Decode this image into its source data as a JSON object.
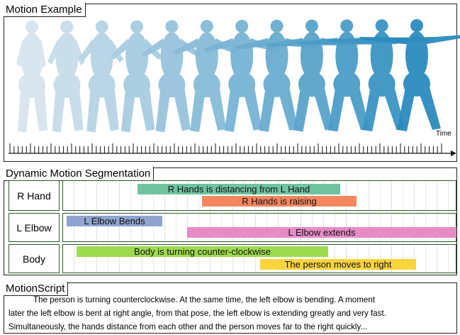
{
  "panels": [
    {
      "title": "Motion Example",
      "axis_label": "Time"
    },
    {
      "title": "Dynamic Motion Segmentation",
      "rows": [
        {
          "label": "R Hand",
          "segments": [
            "R Hands is distancing from L Hand",
            "R Hands is raising"
          ]
        },
        {
          "label": "L Elbow",
          "segments": [
            "L Elbow Bends",
            "L Elbow extends"
          ]
        },
        {
          "label": "Body",
          "segments": [
            "Body is turning counter-clockwise",
            "The person moves to right"
          ]
        }
      ]
    },
    {
      "title": "MotionScript",
      "lines": [
        "The person is turning counterclockwise. At the same time, the left elbow is bending. A moment",
        "later the left elbow is bent at right angle, from that pose, the left elbow is extending greatly and very fast.",
        "Simultaneously, the hands distance from each other and the person moves far to the right quickly..."
      ]
    }
  ]
}
